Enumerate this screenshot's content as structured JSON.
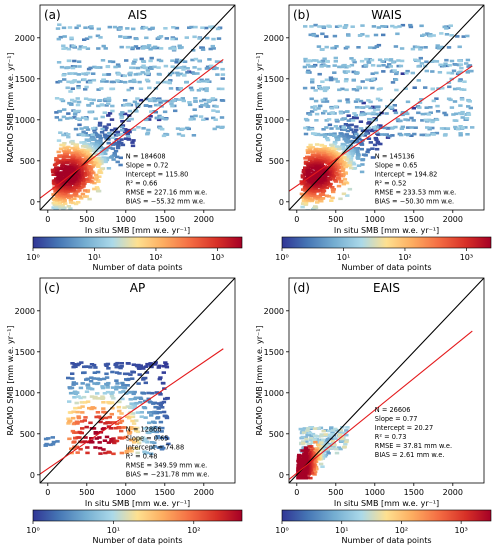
{
  "shared": {
    "xlabel": "In situ SMB [mm w.e. yr⁻¹]",
    "ylabel": "RACMO SMB [mm w.e. yr⁻¹]",
    "xticks": [
      0,
      500,
      1000,
      1500,
      2000
    ],
    "yticks": [
      0,
      500,
      1000,
      1500,
      2000
    ],
    "xlim": [
      -100,
      2400
    ],
    "ylim": [
      -100,
      2400
    ],
    "colorbar_label": "Number of data points",
    "colors": {
      "identity_line": "#000000",
      "fit_line": "#e41a1c"
    }
  },
  "chart_data": [
    {
      "type": "scatter",
      "panel": "(a)",
      "title": "AIS",
      "stats": [
        "N = 184608",
        "Slope = 0.72",
        "Intercept = 115.80",
        "R² = 0.66",
        "RMSE = 227.16 mm w.e.",
        "BIAS = −55.32 mm w.e."
      ],
      "fit": {
        "slope": 0.72,
        "intercept": 115.8
      },
      "cbar_ticks": [
        "10⁰",
        "10¹",
        "10²",
        "10³"
      ],
      "cbar_max_exp": 3.4
    },
    {
      "type": "scatter",
      "panel": "(b)",
      "title": "WAIS",
      "stats": [
        "N = 145136",
        "Slope = 0.65",
        "Intercept = 194.82",
        "R² = 0.52",
        "RMSE = 233.53 mm w.e.",
        "BIAS = −50.30 mm w.e."
      ],
      "fit": {
        "slope": 0.65,
        "intercept": 194.82
      },
      "cbar_ticks": [
        "10⁰",
        "10¹",
        "10²",
        "10³"
      ],
      "cbar_max_exp": 3.4
    },
    {
      "type": "scatter",
      "panel": "(c)",
      "title": "AP",
      "stats": [
        "N = 12866",
        "Slope = 0.65",
        "Intercept = 74.88",
        "R² = 0.48",
        "RMSE = 349.59 mm w.e.",
        "BIAS = −231.78 mm w.e."
      ],
      "fit": {
        "slope": 0.65,
        "intercept": 74.88
      },
      "cbar_ticks": [
        "10⁰",
        "10¹",
        "10²"
      ],
      "cbar_max_exp": 2.6
    },
    {
      "type": "scatter",
      "panel": "(d)",
      "title": "EAIS",
      "stats": [
        "N = 26606",
        "Slope = 0.77",
        "Intercept = 20.27",
        "R² = 0.73",
        "RMSE = 37.81 mm w.e.",
        "BIAS = 2.61 mm w.e."
      ],
      "fit": {
        "slope": 0.77,
        "intercept": 20.27
      },
      "cbar_ticks": [
        "10⁰",
        "10¹",
        "10²",
        "10³"
      ],
      "cbar_max_exp": 3.5
    }
  ]
}
